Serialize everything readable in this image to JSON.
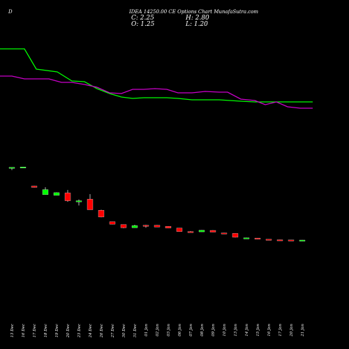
{
  "header": {
    "site": "D",
    "title": "IDEA 14250.00 CE Options Chart MunafaSutra.com"
  },
  "ohlc": {
    "close": "C: 2.25",
    "open": "O: 1.25",
    "high": "H: 2.80",
    "low": "L: 1.20"
  },
  "chart_data": {
    "type": "candlestick",
    "title": "IDEA 14250.00 CE Options Chart MunafaSutra.com",
    "categories": [
      "13 Dec",
      "16 Dec",
      "17 Dec",
      "18 Dec",
      "19 Dec",
      "20 Dec",
      "23 Dec",
      "24 Dec",
      "26 Dec",
      "27 Dec",
      "30 Dec",
      "31 Dec",
      "01 Jan",
      "02 Jan",
      "03 Jan",
      "06 Jan",
      "07 Jan",
      "08 Jan",
      "09 Jan",
      "10 Jan",
      "13 Jan",
      "14 Jan",
      "15 Jan",
      "16 Jan",
      "17 Jan",
      "20 Jan",
      "21 Jan"
    ],
    "candles": [
      {
        "o": 38.5,
        "h": 39.0,
        "l": 36.8,
        "c": 39.5,
        "dir": "up"
      },
      {
        "o": 39.7,
        "h": 39.9,
        "l": 39.7,
        "c": 39.9,
        "dir": "up"
      },
      {
        "o": 21.0,
        "h": 21.2,
        "l": 19.6,
        "c": 19.7,
        "dir": "down"
      },
      {
        "o": 12.5,
        "h": 19.8,
        "l": 12.5,
        "c": 17.5,
        "dir": "up"
      },
      {
        "o": 11.8,
        "h": 14.7,
        "l": 11.8,
        "c": 14.5,
        "dir": "up"
      },
      {
        "o": 14.2,
        "h": 17.1,
        "l": 5.4,
        "c": 6.5,
        "dir": "down"
      },
      {
        "o": 5.4,
        "h": 7.8,
        "l": 1.8,
        "c": 6.5,
        "dir": "up"
      },
      {
        "o": 8.0,
        "h": 13.0,
        "l": -2.0,
        "c": -2.4,
        "dir": "down"
      },
      {
        "o": -2.9,
        "h": -2.4,
        "l": -9.8,
        "c": -9.6,
        "dir": "down"
      },
      {
        "o": -14.2,
        "h": -14.2,
        "l": -16.8,
        "c": -16.7,
        "dir": "down"
      },
      {
        "o": -17.0,
        "h": -17.0,
        "l": -20.6,
        "c": -20.2,
        "dir": "down"
      },
      {
        "o": -20.2,
        "h": -17.2,
        "l": -20.2,
        "c": -18.1,
        "dir": "up"
      },
      {
        "o": -17.8,
        "h": -17.3,
        "l": -20.2,
        "c": -18.5,
        "dir": "down"
      },
      {
        "o": -17.7,
        "h": -17.5,
        "l": -19.5,
        "c": -19.5,
        "dir": "down"
      },
      {
        "o": -18.8,
        "h": -18.6,
        "l": -20.6,
        "c": -20.5,
        "dir": "down"
      },
      {
        "o": -20.5,
        "h": -20.5,
        "l": -24.0,
        "c": -24.0,
        "dir": "down"
      },
      {
        "o": -24.0,
        "h": -23.5,
        "l": -24.5,
        "c": -24.2,
        "dir": "down"
      },
      {
        "o": -24.2,
        "h": -22.5,
        "l": -24.2,
        "c": -22.7,
        "dir": "up"
      },
      {
        "o": -22.8,
        "h": -22.6,
        "l": -24.6,
        "c": -24.5,
        "dir": "down"
      },
      {
        "o": -25.4,
        "h": -25.2,
        "l": -26.3,
        "c": -26.0,
        "dir": "down"
      },
      {
        "o": -25.8,
        "h": -25.8,
        "l": -29.8,
        "c": -29.6,
        "dir": "down"
      },
      {
        "o": -30.3,
        "h": -30.0,
        "l": -30.6,
        "c": -30.2,
        "dir": "up"
      },
      {
        "o": -30.4,
        "h": -30.4,
        "l": -31.5,
        "c": -31.3,
        "dir": "down"
      },
      {
        "o": -31.6,
        "h": -31.6,
        "l": -32.0,
        "c": -31.9,
        "dir": "down"
      },
      {
        "o": -32.1,
        "h": -32.0,
        "l": -32.4,
        "c": -32.3,
        "dir": "down"
      },
      {
        "o": -32.3,
        "h": -32.3,
        "l": -32.7,
        "c": -32.7,
        "dir": "down"
      },
      {
        "o": -33.2,
        "h": -32.3,
        "l": -33.2,
        "c": -32.4,
        "dir": "up"
      }
    ],
    "series": [
      {
        "color": "#00ff00",
        "x": [
          0,
          35,
          52,
          82,
          103,
          121,
          139,
          157,
          174,
          190,
          206,
          222,
          239,
          255,
          275,
          294,
          314,
          345,
          365,
          384,
          404,
          424,
          448
        ],
        "values": [
          124,
          124,
          95,
          91,
          78,
          77,
          67,
          60,
          55,
          53,
          54,
          54,
          54,
          53,
          51,
          51,
          51,
          49,
          48,
          48,
          48,
          48,
          48
        ]
      },
      {
        "color": "#cc00cc",
        "x": [
          0,
          17,
          35,
          52,
          70,
          88,
          103,
          121,
          139,
          157,
          174,
          190,
          206,
          222,
          239,
          255,
          275,
          294,
          314,
          326,
          345,
          365,
          380,
          396,
          412,
          430,
          448
        ],
        "values": [
          85,
          85,
          81,
          81,
          81,
          76,
          76,
          73,
          69,
          61,
          60,
          66,
          66,
          67,
          66,
          61,
          61,
          63,
          62,
          62,
          52,
          50,
          44,
          48,
          41,
          39,
          39
        ]
      }
    ],
    "x_origin": 17,
    "x_step": 16.0,
    "value_scale": 1.45,
    "value_offset": 297,
    "grid": false,
    "up_color": "#00ff00",
    "down_color": "#ff0000"
  }
}
